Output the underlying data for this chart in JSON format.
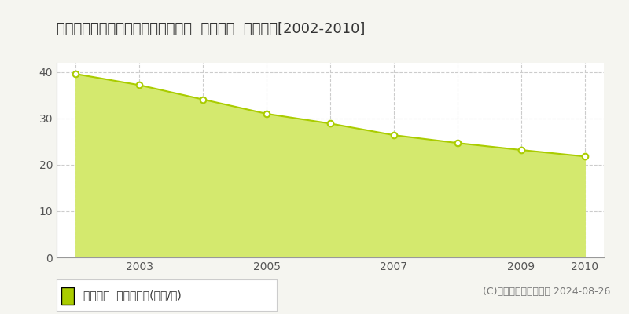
{
  "title": "福井県敦賀市津内町２丁目３番３外  地価公示  地価推移[2002-2010]",
  "years": [
    2002,
    2003,
    2004,
    2005,
    2006,
    2007,
    2008,
    2009,
    2010
  ],
  "values": [
    39.6,
    37.2,
    34.1,
    31.0,
    28.9,
    26.4,
    24.7,
    23.2,
    21.8
  ],
  "line_color": "#aacc00",
  "fill_color": "#d4e96e",
  "marker_color": "#ffffff",
  "marker_edge_color": "#aacc00",
  "background_color": "#f5f5f0",
  "plot_background": "#ffffff",
  "grid_color": "#cccccc",
  "ylim": [
    0,
    42
  ],
  "yticks": [
    0,
    10,
    20,
    30,
    40
  ],
  "xticks": [
    2002,
    2003,
    2004,
    2005,
    2006,
    2007,
    2008,
    2009,
    2010
  ],
  "xtick_labels": [
    "",
    "2003",
    "",
    "2005",
    "",
    "2007",
    "",
    "2009",
    "2010"
  ],
  "legend_label": "地価公示  平均坪単価(万円/坪)",
  "legend_color": "#aacc00",
  "copyright_text": "(C)土地価格ドットコム 2024-08-26",
  "title_fontsize": 13,
  "axis_fontsize": 10,
  "legend_fontsize": 10,
  "copyright_fontsize": 9
}
